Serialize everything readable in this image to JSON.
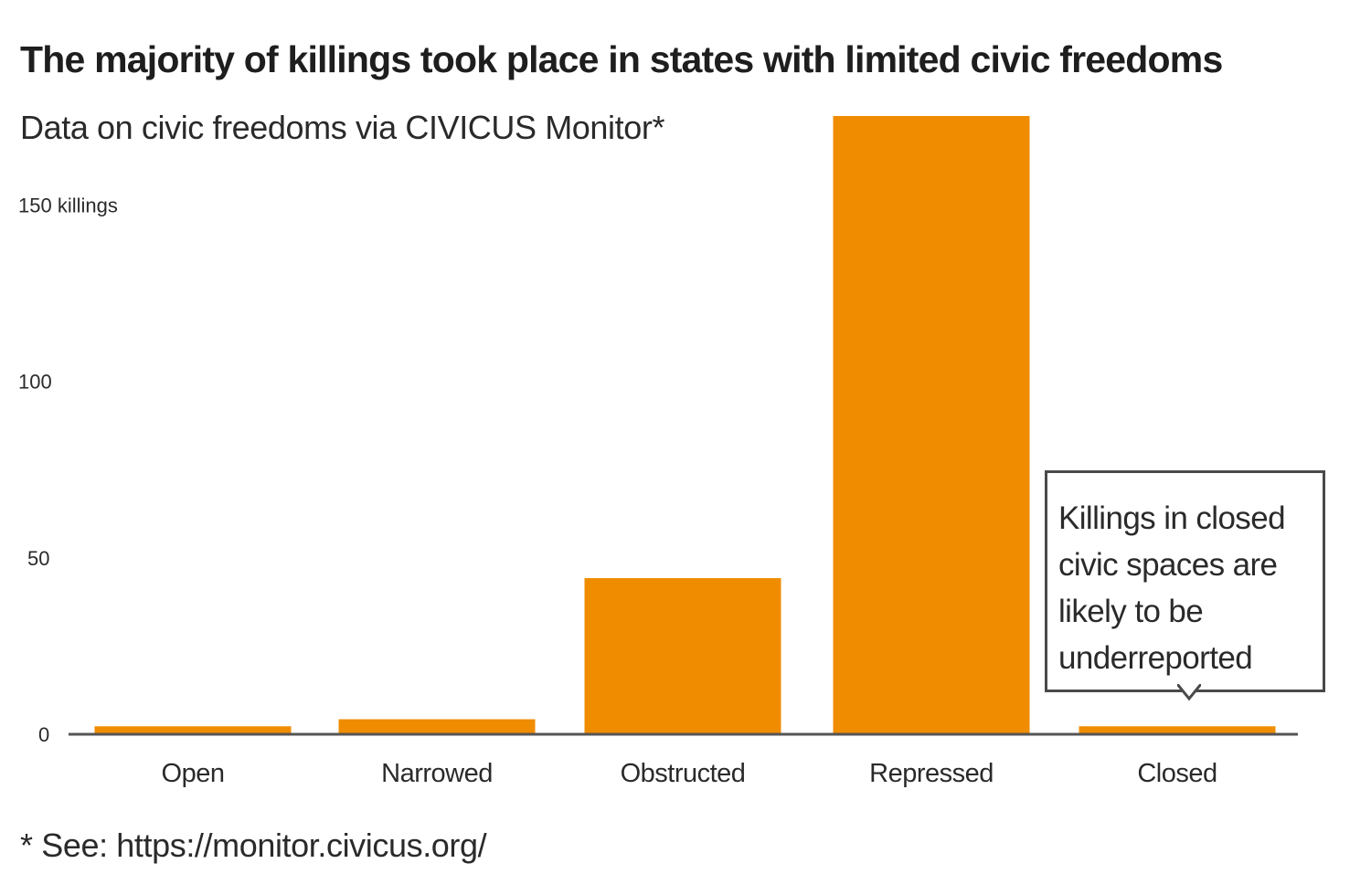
{
  "title": "The majority of killings took place in states with limited civic freedoms",
  "subtitle": "Data on civic freedoms via CIVICUS Monitor*",
  "footnote": "* See: https://monitor.civicus.org/",
  "annotation": "Killings in closed civic spaces are likely to be underreported",
  "colors": {
    "bar": "#f08c00",
    "axis": "#555555",
    "text": "#2a2a2a"
  },
  "chart_data": {
    "type": "bar",
    "title": "The majority of killings took place in states with limited civic freedoms",
    "subtitle": "Data on civic freedoms via CIVICUS Monitor*",
    "categories": [
      "Open",
      "Narrowed",
      "Obstructed",
      "Repressed",
      "Closed"
    ],
    "values": [
      2,
      4,
      44,
      175,
      2
    ],
    "ylim": [
      0,
      175
    ],
    "yticks": [
      0,
      50,
      100,
      150
    ],
    "ytick_labels": [
      "0",
      "50",
      "100",
      "150 killings"
    ],
    "grid": false,
    "legend": "none"
  }
}
